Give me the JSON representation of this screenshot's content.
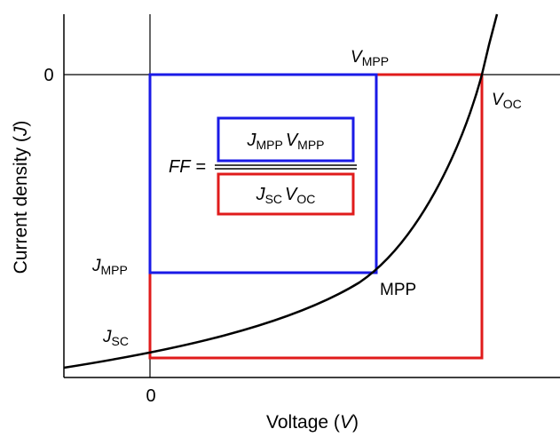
{
  "axes": {
    "x_title": {
      "main": "Voltage (",
      "var": "V",
      "close": ")"
    },
    "y_title": {
      "main": "Current density (",
      "var": "J",
      "close": ")"
    },
    "x_zero": "0",
    "y_zero": "0"
  },
  "points": {
    "vmpp": {
      "var": "V",
      "sub": "MPP"
    },
    "voc": {
      "var": "V",
      "sub": "OC"
    },
    "jmpp": {
      "var": "J",
      "sub": "MPP"
    },
    "jsc": {
      "var": "J",
      "sub": "SC"
    },
    "mpp": "MPP"
  },
  "formula": {
    "ff": "FF",
    "equals": "=",
    "numerator": [
      {
        "var": "J",
        "sub": "MPP"
      },
      {
        "var": "V",
        "sub": "MPP"
      }
    ],
    "denominator": [
      {
        "var": "J",
        "sub": "SC"
      },
      {
        "var": "V",
        "sub": "OC"
      }
    ]
  },
  "colors": {
    "mpp_rect": "#1a1ae6",
    "max_rect": "#e01b1b",
    "curve": "#000000",
    "axes": "#000000"
  }
}
